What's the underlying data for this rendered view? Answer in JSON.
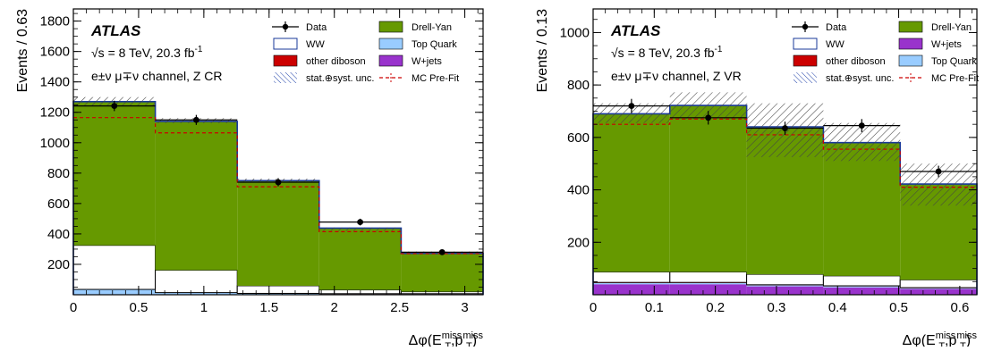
{
  "chart_data": [
    {
      "type": "bar",
      "subtype": "stacked-histogram",
      "atlas_label": "ATLAS",
      "energy_line": "√s = 8 TeV, 20.3 fb",
      "energy_sup": "-1",
      "channel_line": "e±ν μ∓ν channel, Z CR",
      "ylabel": "Events / 0.63",
      "xlabel": "Δφ(E_T^miss, p_T^miss)",
      "xlim": [
        0,
        3.14
      ],
      "ylim": [
        0,
        1880
      ],
      "xticks": [
        "0",
        "0.5",
        "1",
        "1.5",
        "2",
        "2.5",
        "3"
      ],
      "xtick_values": [
        0,
        0.5,
        1,
        1.5,
        2,
        2.5,
        3
      ],
      "yticks": [
        "200",
        "400",
        "600",
        "800",
        "1000",
        "1200",
        "1400",
        "1600",
        "1800"
      ],
      "ytick_values": [
        200,
        400,
        600,
        800,
        1000,
        1200,
        1400,
        1600,
        1800
      ],
      "bin_edges": [
        0,
        0.628,
        1.256,
        1.884,
        2.512,
        3.14
      ],
      "series": [
        {
          "name": "W+jets",
          "color": "#9933cc",
          "values": [
            3,
            2,
            2,
            2,
            2
          ]
        },
        {
          "name": "Top Quark",
          "color": "#99ccff",
          "values": [
            30,
            10,
            5,
            3,
            3
          ]
        },
        {
          "name": "other diboson",
          "color": "#cc0000",
          "values": [
            2,
            2,
            2,
            2,
            2
          ]
        },
        {
          "name": "WW",
          "color": "#ffffff",
          "values": [
            290,
            148,
            50,
            25,
            13
          ]
        },
        {
          "name": "Drell-Yan",
          "color": "#669900",
          "values": [
            945,
            978,
            691,
            406,
            252
          ]
        }
      ],
      "mc_prefit": [
        1165,
        1065,
        710,
        415,
        270
      ],
      "unc_band": [
        [
          1245,
          1300
        ],
        [
          1128,
          1162
        ],
        [
          738,
          764
        ],
        [
          420,
          442
        ],
        [
          266,
          284
        ]
      ],
      "data_x": [
        0.314,
        0.942,
        1.57,
        2.198,
        2.826
      ],
      "data_y": [
        1242,
        1150,
        740,
        478,
        280
      ],
      "data_err": [
        34,
        33,
        27,
        22,
        17
      ],
      "legend": {
        "data": "Data",
        "drell_yan": "Drell-Yan",
        "ww": "WW",
        "top": "Top Quark",
        "diboson": "other diboson",
        "wjets": "W+jets",
        "unc": "stat.⊕syst. unc.",
        "prefit": "MC Pre-Fit"
      }
    },
    {
      "type": "bar",
      "subtype": "stacked-histogram",
      "atlas_label": "ATLAS",
      "energy_line": "√s = 8 TeV, 20.3 fb",
      "energy_sup": "-1",
      "channel_line": "e±ν μ∓ν channel, Z VR",
      "ylabel": "Events / 0.13",
      "xlabel": "Δφ(E_T^miss, p_T^miss)",
      "xlim": [
        0,
        0.628
      ],
      "ylim": [
        0,
        1090
      ],
      "xticks": [
        "0",
        "0.1",
        "0.2",
        "0.3",
        "0.4",
        "0.5",
        "0.6"
      ],
      "xtick_values": [
        0,
        0.1,
        0.2,
        0.3,
        0.4,
        0.5,
        0.6
      ],
      "yticks": [
        "200",
        "400",
        "600",
        "800",
        "1000"
      ],
      "ytick_values": [
        200,
        400,
        600,
        800,
        1000
      ],
      "bin_edges": [
        0,
        0.1256,
        0.2512,
        0.3768,
        0.5024,
        0.628
      ],
      "series": [
        {
          "name": "W+jets",
          "color": "#9933cc",
          "values": [
            40,
            40,
            32,
            28,
            22
          ]
        },
        {
          "name": "Top Quark",
          "color": "#99ccff",
          "values": [
            5,
            5,
            4,
            4,
            3
          ]
        },
        {
          "name": "other diboson",
          "color": "#cc0000",
          "values": [
            2,
            2,
            2,
            2,
            2
          ]
        },
        {
          "name": "WW",
          "color": "#ffffff",
          "values": [
            40,
            40,
            40,
            38,
            30
          ]
        },
        {
          "name": "Drell-Yan",
          "color": "#669900",
          "values": [
            603,
            635,
            562,
            508,
            365
          ]
        }
      ],
      "mc_prefit": [
        650,
        670,
        610,
        555,
        410
      ],
      "unc_band": [
        [
          655,
          730
        ],
        [
          670,
          772
        ],
        [
          525,
          730
        ],
        [
          510,
          655
        ],
        [
          340,
          500
        ]
      ],
      "data_x": [
        0.0628,
        0.1884,
        0.314,
        0.4396,
        0.5652
      ],
      "data_y": [
        720,
        675,
        635,
        645,
        470
      ],
      "data_err": [
        27,
        26,
        25,
        25,
        22
      ],
      "legend": {
        "data": "Data",
        "drell_yan": "Drell-Yan",
        "ww": "WW",
        "wjets": "W+jets",
        "diboson": "other diboson",
        "top": "Top Quark",
        "unc": "stat.⊕syst. unc.",
        "prefit": "MC Pre-Fit"
      }
    }
  ]
}
